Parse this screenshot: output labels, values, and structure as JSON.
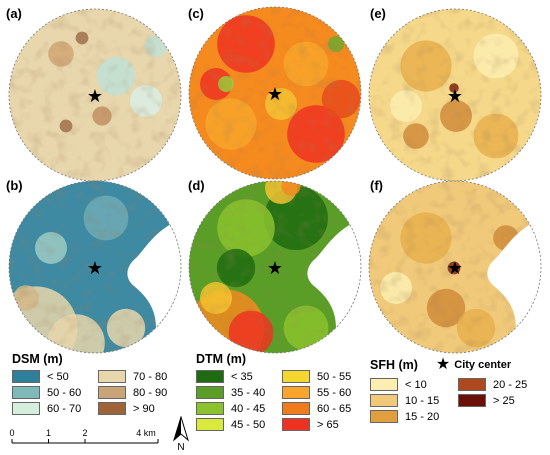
{
  "panels": [
    {
      "id": "a",
      "label": "(a)",
      "variable": "DSM",
      "base": "#e8d6ac",
      "masked": false,
      "blobs": [
        [
          "#d2a776",
          55,
          48,
          8
        ],
        [
          "#bfe0d6",
          110,
          70,
          12
        ],
        [
          "#a0704a",
          76,
          32,
          4
        ],
        [
          "#d9eee6",
          140,
          95,
          10
        ],
        [
          "#c29163",
          96,
          110,
          6
        ],
        [
          "#bfe0d6",
          150,
          40,
          7
        ],
        [
          "#a0704a",
          60,
          120,
          4
        ]
      ]
    },
    {
      "id": "b",
      "label": "(b)",
      "variable": "DSM",
      "base": "#3e8aa3",
      "masked": true,
      "blobs": [
        [
          "#e8d6ac",
          30,
          150,
          26
        ],
        [
          "#e8d6ac",
          70,
          165,
          18
        ],
        [
          "#6eaab5",
          100,
          40,
          14
        ],
        [
          "#9dcac4",
          45,
          70,
          10
        ],
        [
          "#e8d6ac",
          120,
          150,
          12
        ],
        [
          "#d2b88a",
          20,
          120,
          8
        ]
      ]
    },
    {
      "id": "c",
      "label": "(c)",
      "variable": "DTM",
      "base": "#f58a1f",
      "masked": false,
      "blobs": [
        [
          "#ee3222",
          60,
          40,
          18
        ],
        [
          "#f7a52c",
          120,
          60,
          14
        ],
        [
          "#ee3222",
          130,
          130,
          18
        ],
        [
          "#f4c233",
          95,
          100,
          10
        ],
        [
          "#f7a52c",
          45,
          120,
          16
        ],
        [
          "#ee3222",
          30,
          80,
          10
        ],
        [
          "#9acb3a",
          40,
          80,
          5
        ],
        [
          "#e84a1c",
          155,
          95,
          12
        ],
        [
          "#6ea92e",
          150,
          40,
          5
        ]
      ]
    },
    {
      "id": "d",
      "label": "(d)",
      "variable": "DTM",
      "base": "#5a9e27",
      "masked": true,
      "blobs": [
        [
          "#1f6b12",
          110,
          40,
          20
        ],
        [
          "#8cc22e",
          60,
          50,
          18
        ],
        [
          "#f58a1f",
          40,
          150,
          24
        ],
        [
          "#ee3222",
          65,
          155,
          14
        ],
        [
          "#f4c233",
          30,
          120,
          10
        ],
        [
          "#8cc22e",
          120,
          150,
          14
        ],
        [
          "#1f6b12",
          50,
          90,
          12
        ],
        [
          "#f4c233",
          95,
          10,
          10
        ],
        [
          "#f58a1f",
          105,
          8,
          6
        ]
      ]
    },
    {
      "id": "e",
      "label": "(e)",
      "variable": "SFH",
      "base": "#f5d88a",
      "masked": false,
      "blobs": [
        [
          "#e8b04c",
          60,
          60,
          16
        ],
        [
          "#d08c3a",
          90,
          110,
          10
        ],
        [
          "#fbeeb0",
          130,
          50,
          14
        ],
        [
          "#e8b04c",
          130,
          130,
          14
        ],
        [
          "#7a2410",
          88,
          82,
          3
        ],
        [
          "#d08c3a",
          50,
          130,
          8
        ],
        [
          "#fbeeb0",
          40,
          100,
          10
        ]
      ]
    },
    {
      "id": "f",
      "label": "(f)",
      "variable": "SFH",
      "base": "#f0c97a",
      "masked": true,
      "blobs": [
        [
          "#e8b04c",
          60,
          60,
          16
        ],
        [
          "#d08c3a",
          80,
          130,
          12
        ],
        [
          "#fbeeb0",
          30,
          110,
          10
        ],
        [
          "#7a2410",
          150,
          80,
          6
        ],
        [
          "#d08c3a",
          140,
          60,
          8
        ],
        [
          "#e8b04c",
          110,
          150,
          12
        ],
        [
          "#7a2410",
          88,
          90,
          4
        ]
      ]
    }
  ],
  "legend_dsm": {
    "title": "DSM (m)",
    "items": [
      {
        "label": "< 50",
        "color": "#2e7f99"
      },
      {
        "label": "70 - 80",
        "color": "#e8d6ac"
      },
      {
        "label": "50 - 60",
        "color": "#7fb9b9"
      },
      {
        "label": "80 - 90",
        "color": "#c9a478"
      },
      {
        "label": "60 - 70",
        "color": "#d5eedd"
      },
      {
        "label": "> 90",
        "color": "#9c6438"
      }
    ]
  },
  "legend_dtm": {
    "title": "DTM (m)",
    "items": [
      {
        "label": "< 35",
        "color": "#1f6b12"
      },
      {
        "label": "50 - 55",
        "color": "#f4d830"
      },
      {
        "label": "35 - 40",
        "color": "#5a9e27"
      },
      {
        "label": "55 - 60",
        "color": "#f7a52c"
      },
      {
        "label": "40 - 45",
        "color": "#8cc22e"
      },
      {
        "label": "60 - 65",
        "color": "#f07b1c"
      },
      {
        "label": "45 - 50",
        "color": "#d9ea3c"
      },
      {
        "label": "> 65",
        "color": "#ee3222"
      }
    ]
  },
  "legend_sfh": {
    "title": "SFH (m)",
    "city_center_label": "City center",
    "items": [
      {
        "label": "< 10",
        "color": "#fbeeb0"
      },
      {
        "label": "20 - 25",
        "color": "#b0481e"
      },
      {
        "label": "10 - 15",
        "color": "#f0c97a"
      },
      {
        "label": "> 25",
        "color": "#6b1008"
      },
      {
        "label": "15 - 20",
        "color": "#e0a040"
      },
      {
        "label": "",
        "color": ""
      }
    ]
  },
  "scale": {
    "ticks": [
      "0",
      "1",
      "2",
      "4 km"
    ],
    "values": [
      0,
      1,
      2,
      4
    ]
  },
  "north": {
    "label": "N"
  }
}
